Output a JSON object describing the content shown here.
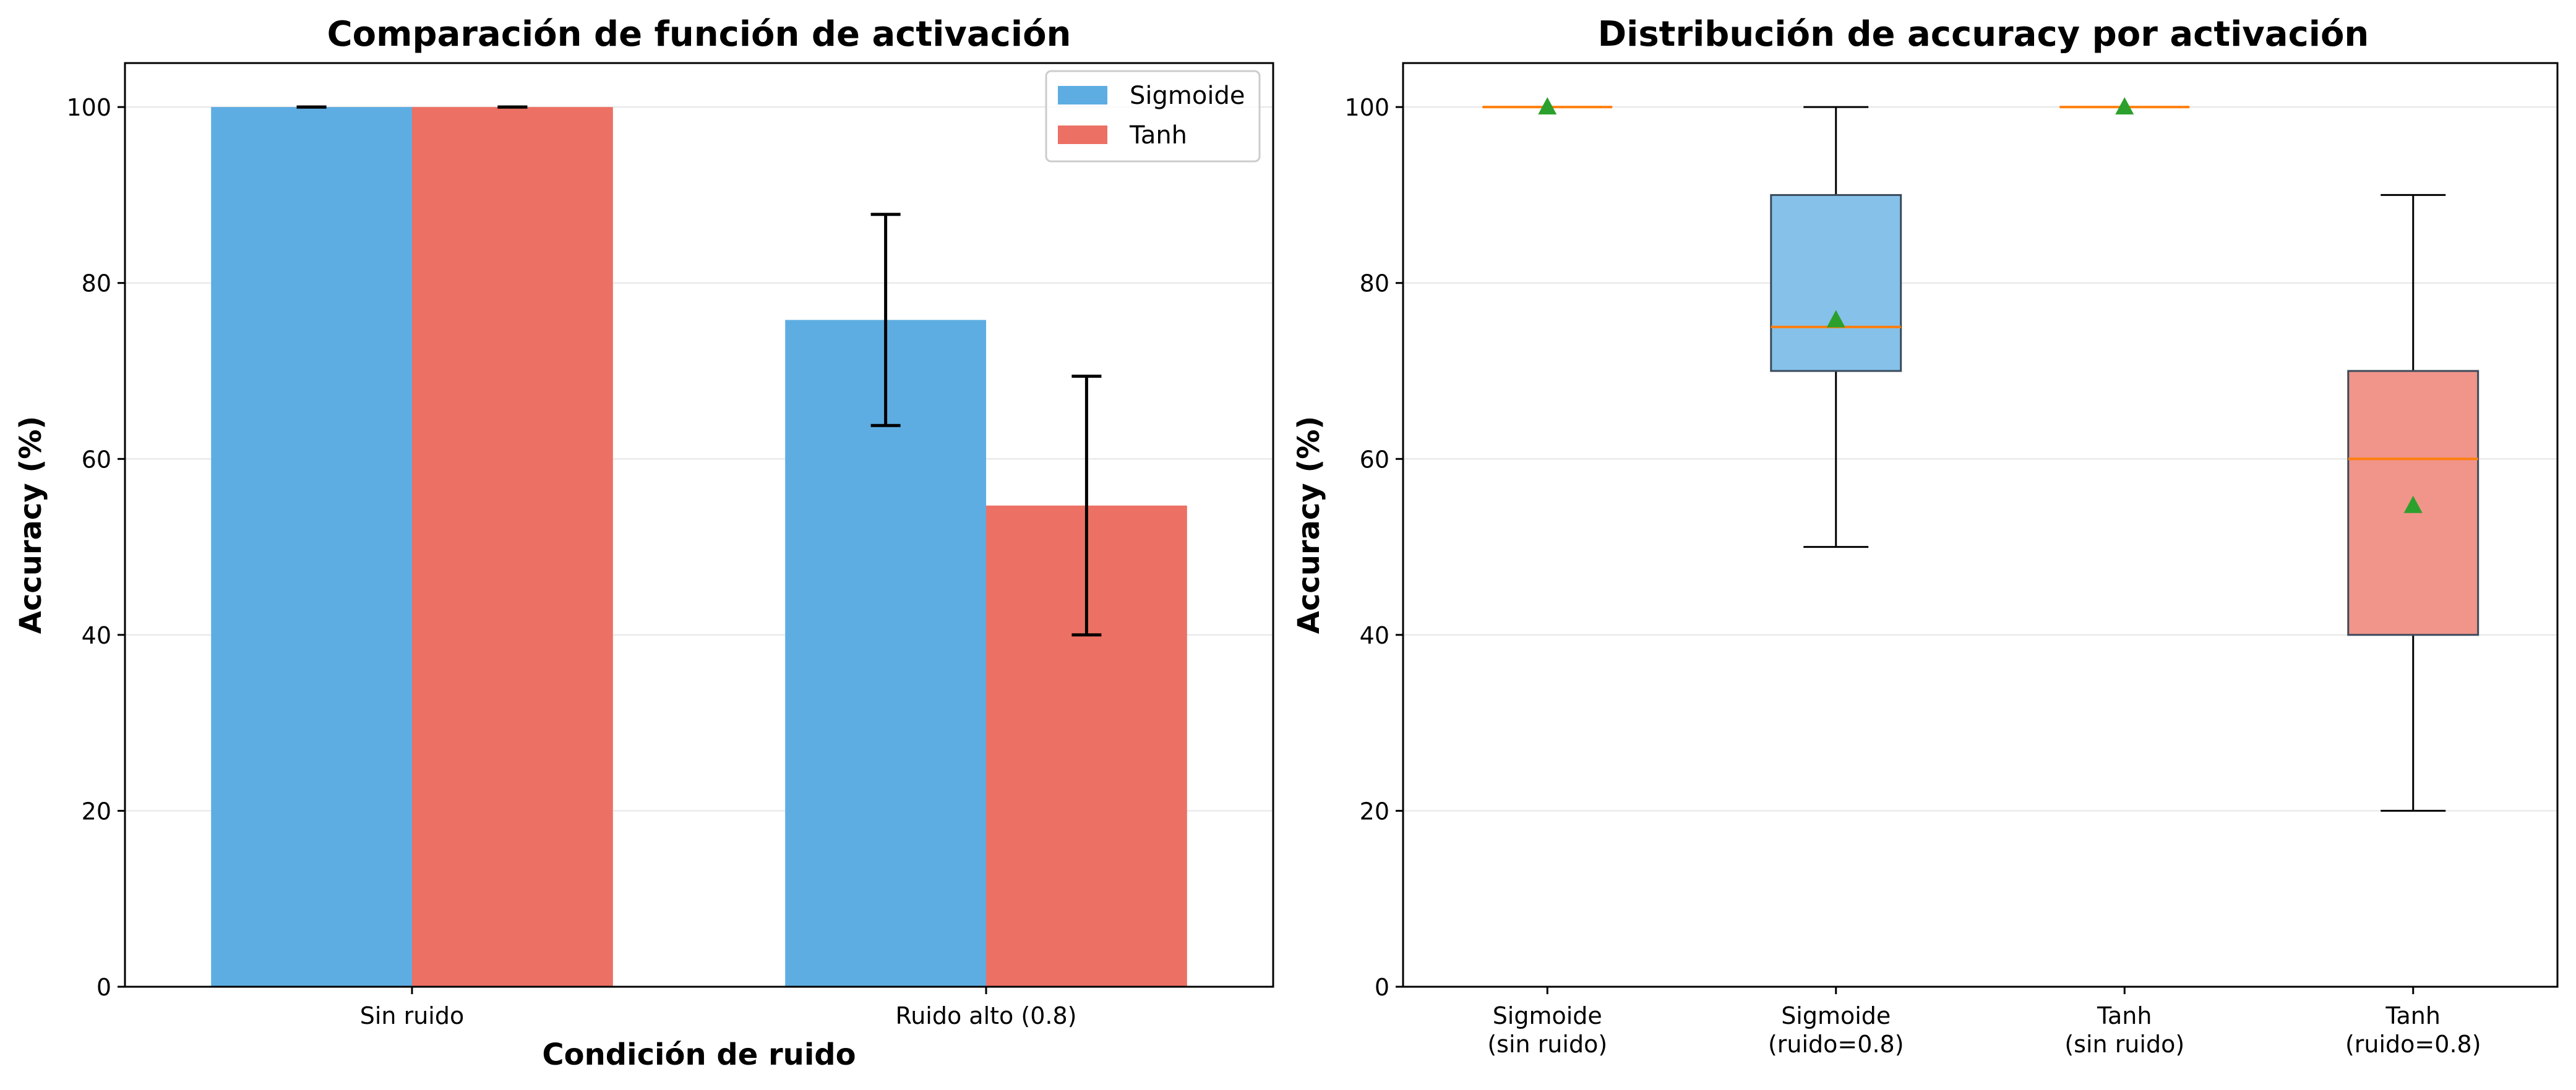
{
  "colors": {
    "sigmoide": "#5DADE2",
    "tanh": "#EC7063",
    "sigmoide_box": "#85C1E9",
    "tanh_box": "#F1948A",
    "median": "#FF7F0E",
    "mean_marker": "#2CA02C",
    "grid": "#E6E6E6",
    "axes": "#000000"
  },
  "chart_data": [
    {
      "type": "bar",
      "title": "Comparación de función de activación",
      "xlabel": "Condición de ruido",
      "ylabel": "Accuracy (%)",
      "categories": [
        "Sin ruido",
        "Ruido alto (0.8)"
      ],
      "series": [
        {
          "name": "Sigmoide",
          "values": [
            100,
            75.8
          ],
          "error": [
            0,
            12
          ]
        },
        {
          "name": "Tanh",
          "values": [
            100,
            54.7
          ],
          "error": [
            0,
            14.7
          ]
        }
      ],
      "ylim": [
        0,
        105
      ],
      "yticks": [
        0,
        20,
        40,
        60,
        80,
        100
      ],
      "grid": "y",
      "legend": "top-right"
    },
    {
      "type": "box",
      "title": "Distribución de accuracy por activación",
      "xlabel": "",
      "ylabel": "Accuracy (%)",
      "categories": [
        [
          "Sigmoide",
          "(sin ruido)"
        ],
        [
          "Sigmoide",
          "(ruido=0.8)"
        ],
        [
          "Tanh",
          "(sin ruido)"
        ],
        [
          "Tanh",
          "(ruido=0.8)"
        ]
      ],
      "boxes": [
        {
          "min": 100,
          "q1": 100,
          "median": 100,
          "q3": 100,
          "max": 100,
          "mean": 100,
          "color_key": "sigmoide_box"
        },
        {
          "min": 50,
          "q1": 70,
          "median": 75,
          "q3": 90,
          "max": 100,
          "mean": 75.8,
          "color_key": "sigmoide_box"
        },
        {
          "min": 100,
          "q1": 100,
          "median": 100,
          "q3": 100,
          "max": 100,
          "mean": 100,
          "color_key": "tanh_box"
        },
        {
          "min": 20,
          "q1": 40,
          "median": 60,
          "q3": 70,
          "max": 90,
          "mean": 54.7,
          "color_key": "tanh_box"
        }
      ],
      "ylim": [
        0,
        105
      ],
      "yticks": [
        0,
        20,
        40,
        60,
        80,
        100
      ],
      "grid": "y"
    }
  ]
}
